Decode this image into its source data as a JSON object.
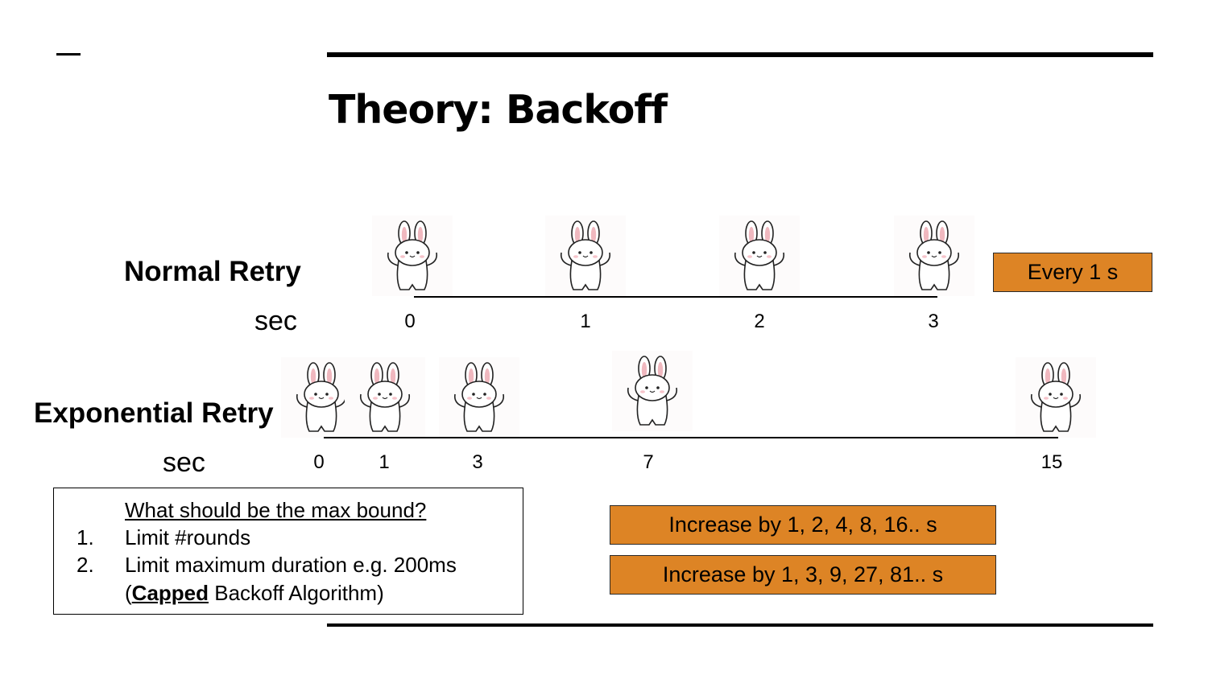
{
  "slide": {
    "title": "Theory: Backoff"
  },
  "normal_retry": {
    "label": "Normal Retry",
    "unit": "sec",
    "ticks": [
      "0",
      "1",
      "2",
      "3"
    ],
    "note": "Every 1 s"
  },
  "exponential_retry": {
    "label": "Exponential Retry",
    "unit": "sec",
    "ticks": [
      "0",
      "1",
      "3",
      "7",
      "15"
    ],
    "note_1": "Increase by 1, 2, 4, 8, 16.. s",
    "note_2": "Increase by 1, 3, 9, 27, 81.. s"
  },
  "notes": {
    "heading": "What should be the max bound?",
    "items": [
      {
        "num": "1.",
        "text": "Limit #rounds"
      },
      {
        "num": "2.",
        "text": "Limit maximum duration e.g. 200ms"
      }
    ],
    "continuation_open": "(",
    "continuation_bold": "Capped",
    "continuation_rest": " Backoff Algorithm)"
  },
  "colors": {
    "accent_box": "#dd8425",
    "bunny_ear_inner": "#f0b8bf",
    "bunny_cheek": "#f6c4cb"
  },
  "icons": {
    "retry_marker": "bunny-icon"
  }
}
